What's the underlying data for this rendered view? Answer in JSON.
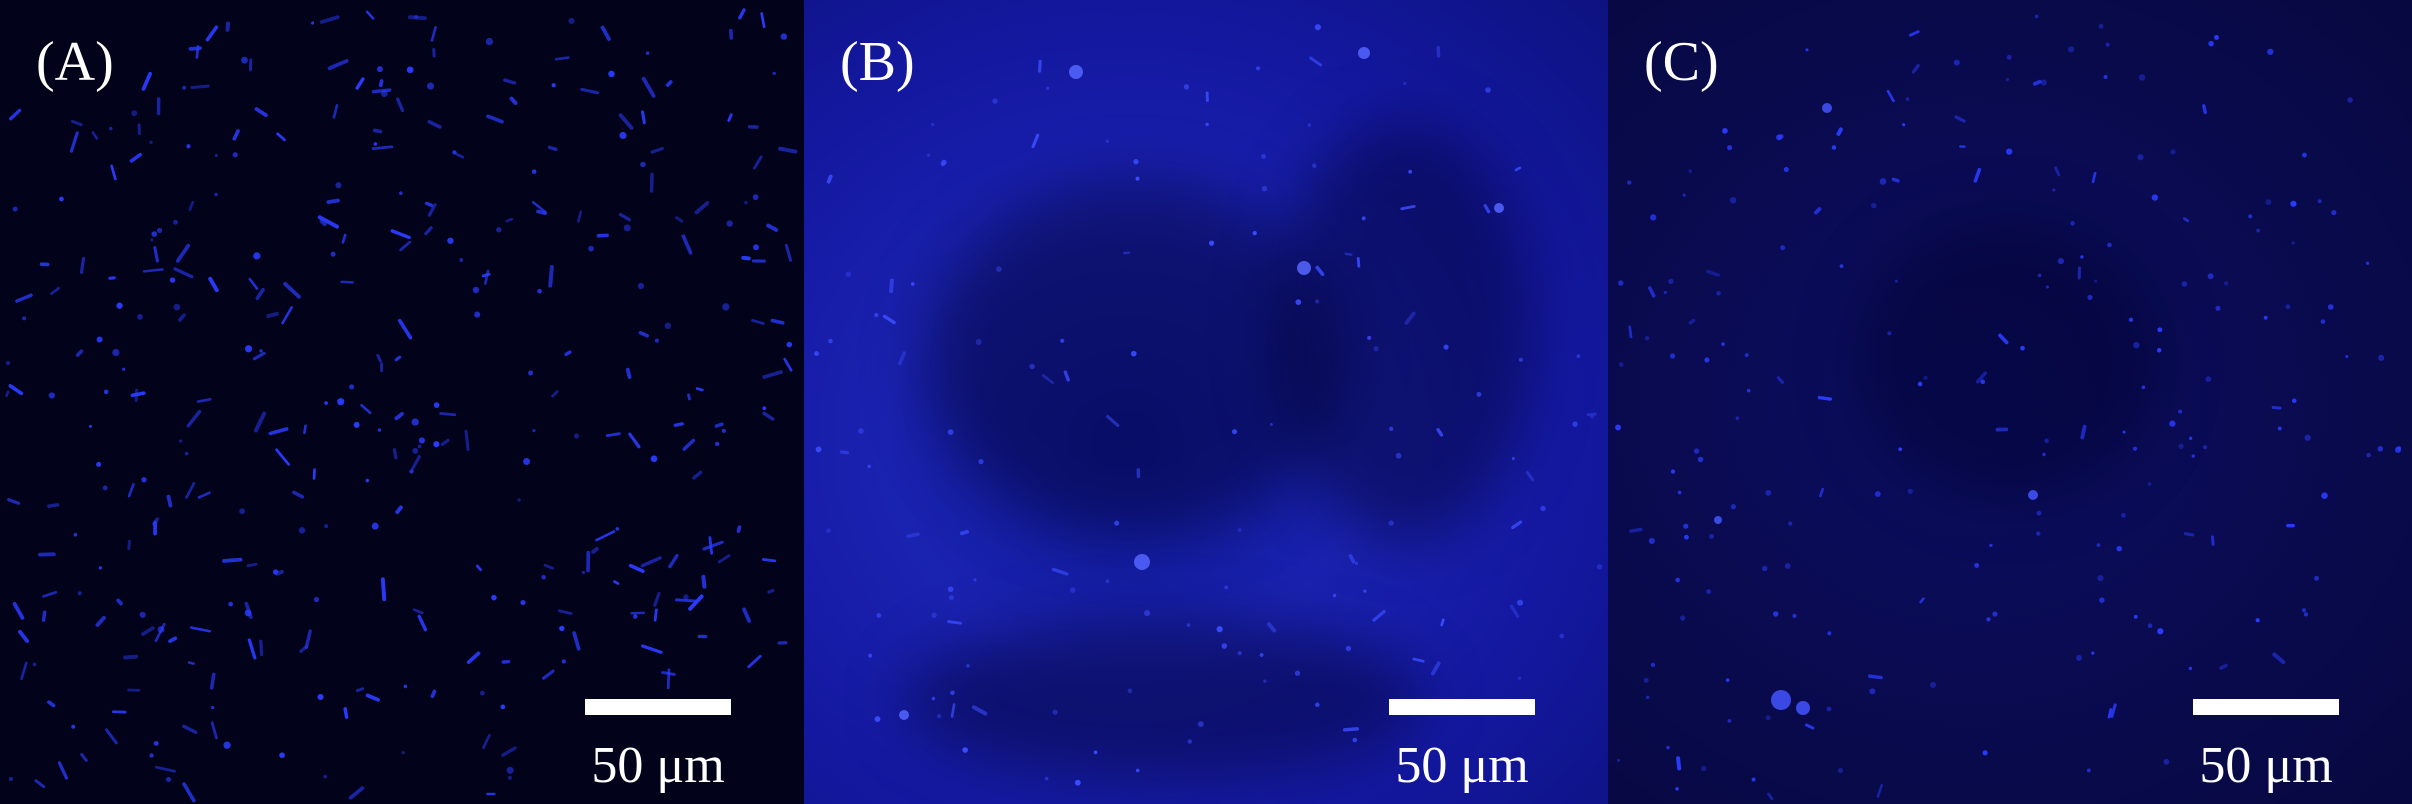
{
  "panels": [
    {
      "label": "(A)",
      "scale_label": "50 μm"
    },
    {
      "label": "(B)",
      "scale_label": "50 μm"
    },
    {
      "label": "(C)",
      "scale_label": "50 μm"
    }
  ],
  "colors": {
    "fluorescence": "#2a3cff",
    "panel_a_background": "#02021a",
    "panel_b_background": "#1a22b0",
    "panel_c_background": "#0a0b52",
    "text": "#ffffff"
  }
}
